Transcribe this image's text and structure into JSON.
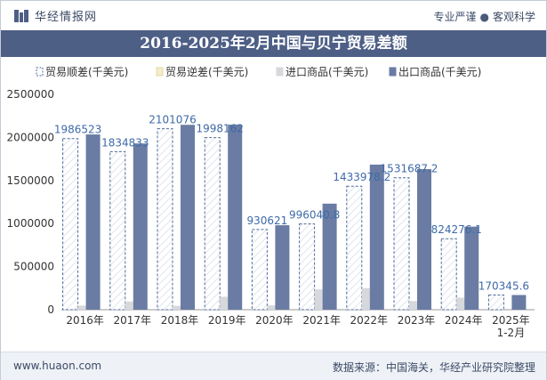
{
  "header": {
    "brand": "华经情报网",
    "slogan_left": "专业严谨",
    "slogan_sep": "●",
    "slogan_right": "客观科学"
  },
  "footer": {
    "site": "www.huaon.com",
    "source": "数据来源：中国海关，华经产业研究院整理"
  },
  "colors": {
    "title_bg": "#4e5f86",
    "export": "#6a7ca3",
    "import": "#d6d8dc",
    "balance_fill": "#ffffff",
    "balance_stroke": "#4e6a9a",
    "deficit": "#f3eccc"
  },
  "chart_data": {
    "type": "bar",
    "title": "2016-2025年2月中国与贝宁贸易差额",
    "categories": [
      "2016年",
      "2017年",
      "2018年",
      "2019年",
      "2020年",
      "2021年",
      "2022年",
      "2023年",
      "2024年",
      "2025年\n1-2月"
    ],
    "series": [
      {
        "name": "贸易顺差(千美元)",
        "values": [
          1986523,
          1834833,
          2101076,
          1998162,
          930621,
          996040.8,
          1433978.2,
          1531687.2,
          824276.1,
          170345.6
        ]
      },
      {
        "name": "贸易逆差(千美元)",
        "values": [
          0,
          0,
          0,
          0,
          0,
          0,
          0,
          0,
          0,
          0
        ]
      },
      {
        "name": "进口商品(千美元)",
        "values": [
          48000,
          95000,
          45000,
          150000,
          50000,
          235000,
          250000,
          100000,
          140000,
          0
        ]
      },
      {
        "name": "出口商品(千美元)",
        "values": [
          2034523,
          1929833,
          2146076,
          2148162,
          980621,
          1231040.8,
          1683978.2,
          1631687.2,
          964276.1,
          170345.6
        ]
      }
    ],
    "data_labels": [
      "1986523",
      "1834833",
      "2101076",
      "1998162",
      "930621",
      "996040.8",
      "1433978.2",
      "1531687.2",
      "824276.1",
      "170345.6"
    ],
    "yticks": [
      "0",
      "500000",
      "1000000",
      "1500000",
      "2000000",
      "2500000"
    ],
    "ylim": [
      0,
      2500000
    ],
    "legend": "top",
    "grid": false
  }
}
